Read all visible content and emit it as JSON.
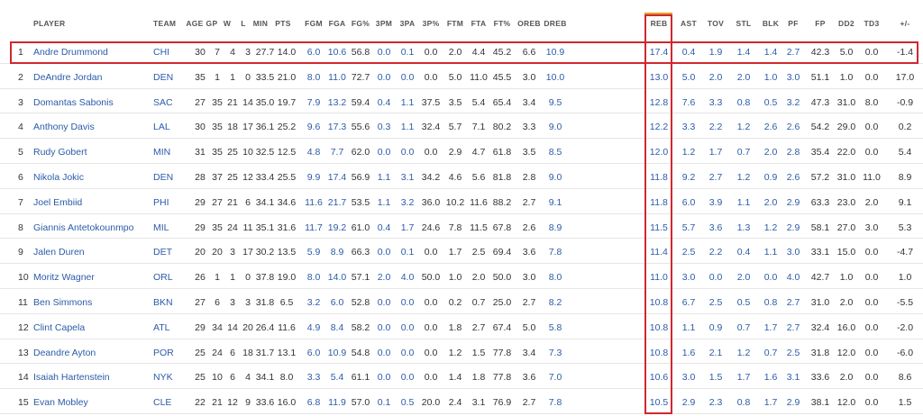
{
  "table": {
    "headers": [
      "PLAYER",
      "TEAM",
      "AGE",
      "GP",
      "W",
      "L",
      "MIN",
      "PTS",
      "FGM",
      "FGA",
      "FG%",
      "3PM",
      "3PA",
      "3P%",
      "FTM",
      "FTA",
      "FT%",
      "OREB",
      "DREB",
      "REB",
      "AST",
      "TOV",
      "STL",
      "BLK",
      "PF",
      "FP",
      "DD2",
      "TD3",
      "+/-"
    ],
    "rows": [
      [
        "1",
        "Andre Drummond",
        "CHI",
        "30",
        "7",
        "4",
        "3",
        "27.7",
        "14.0",
        "6.0",
        "10.6",
        "56.8",
        "0.0",
        "0.1",
        "0.0",
        "2.0",
        "4.4",
        "45.2",
        "6.6",
        "10.9",
        "17.4",
        "0.4",
        "1.9",
        "1.4",
        "1.4",
        "2.7",
        "42.3",
        "5.0",
        "0.0",
        "-1.4"
      ],
      [
        "2",
        "DeAndre Jordan",
        "DEN",
        "35",
        "1",
        "1",
        "0",
        "33.5",
        "21.0",
        "8.0",
        "11.0",
        "72.7",
        "0.0",
        "0.0",
        "0.0",
        "5.0",
        "11.0",
        "45.5",
        "3.0",
        "10.0",
        "13.0",
        "5.0",
        "2.0",
        "2.0",
        "1.0",
        "3.0",
        "51.1",
        "1.0",
        "0.0",
        "17.0"
      ],
      [
        "3",
        "Domantas Sabonis",
        "SAC",
        "27",
        "35",
        "21",
        "14",
        "35.0",
        "19.7",
        "7.9",
        "13.2",
        "59.4",
        "0.4",
        "1.1",
        "37.5",
        "3.5",
        "5.4",
        "65.4",
        "3.4",
        "9.5",
        "12.8",
        "7.6",
        "3.3",
        "0.8",
        "0.5",
        "3.2",
        "47.3",
        "31.0",
        "8.0",
        "-0.9"
      ],
      [
        "4",
        "Anthony Davis",
        "LAL",
        "30",
        "35",
        "18",
        "17",
        "36.1",
        "25.2",
        "9.6",
        "17.3",
        "55.6",
        "0.3",
        "1.1",
        "32.4",
        "5.7",
        "7.1",
        "80.2",
        "3.3",
        "9.0",
        "12.2",
        "3.3",
        "2.2",
        "1.2",
        "2.6",
        "2.6",
        "54.2",
        "29.0",
        "0.0",
        "0.2"
      ],
      [
        "5",
        "Rudy Gobert",
        "MIN",
        "31",
        "35",
        "25",
        "10",
        "32.5",
        "12.5",
        "4.8",
        "7.7",
        "62.0",
        "0.0",
        "0.0",
        "0.0",
        "2.9",
        "4.7",
        "61.8",
        "3.5",
        "8.5",
        "12.0",
        "1.2",
        "1.7",
        "0.7",
        "2.0",
        "2.8",
        "35.4",
        "22.0",
        "0.0",
        "5.4"
      ],
      [
        "6",
        "Nikola Jokic",
        "DEN",
        "28",
        "37",
        "25",
        "12",
        "33.4",
        "25.5",
        "9.9",
        "17.4",
        "56.9",
        "1.1",
        "3.1",
        "34.2",
        "4.6",
        "5.6",
        "81.8",
        "2.8",
        "9.0",
        "11.8",
        "9.2",
        "2.7",
        "1.2",
        "0.9",
        "2.6",
        "57.2",
        "31.0",
        "11.0",
        "8.9"
      ],
      [
        "7",
        "Joel Embiid",
        "PHI",
        "29",
        "27",
        "21",
        "6",
        "34.1",
        "34.6",
        "11.6",
        "21.7",
        "53.5",
        "1.1",
        "3.2",
        "36.0",
        "10.2",
        "11.6",
        "88.2",
        "2.7",
        "9.1",
        "11.8",
        "6.0",
        "3.9",
        "1.1",
        "2.0",
        "2.9",
        "63.3",
        "23.0",
        "2.0",
        "9.1"
      ],
      [
        "8",
        "Giannis Antetokounmpo",
        "MIL",
        "29",
        "35",
        "24",
        "11",
        "35.1",
        "31.6",
        "11.7",
        "19.2",
        "61.0",
        "0.4",
        "1.7",
        "24.6",
        "7.8",
        "11.5",
        "67.8",
        "2.6",
        "8.9",
        "11.5",
        "5.7",
        "3.6",
        "1.3",
        "1.2",
        "2.9",
        "58.1",
        "27.0",
        "3.0",
        "5.3"
      ],
      [
        "9",
        "Jalen Duren",
        "DET",
        "20",
        "20",
        "3",
        "17",
        "30.2",
        "13.5",
        "5.9",
        "8.9",
        "66.3",
        "0.0",
        "0.1",
        "0.0",
        "1.7",
        "2.5",
        "69.4",
        "3.6",
        "7.8",
        "11.4",
        "2.5",
        "2.2",
        "0.4",
        "1.1",
        "3.0",
        "33.1",
        "15.0",
        "0.0",
        "-4.7"
      ],
      [
        "10",
        "Moritz Wagner",
        "ORL",
        "26",
        "1",
        "1",
        "0",
        "37.8",
        "19.0",
        "8.0",
        "14.0",
        "57.1",
        "2.0",
        "4.0",
        "50.0",
        "1.0",
        "2.0",
        "50.0",
        "3.0",
        "8.0",
        "11.0",
        "3.0",
        "0.0",
        "2.0",
        "0.0",
        "4.0",
        "42.7",
        "1.0",
        "0.0",
        "1.0"
      ],
      [
        "11",
        "Ben Simmons",
        "BKN",
        "27",
        "6",
        "3",
        "3",
        "31.8",
        "6.5",
        "3.2",
        "6.0",
        "52.8",
        "0.0",
        "0.0",
        "0.0",
        "0.2",
        "0.7",
        "25.0",
        "2.7",
        "8.2",
        "10.8",
        "6.7",
        "2.5",
        "0.5",
        "0.8",
        "2.7",
        "31.0",
        "2.0",
        "0.0",
        "-5.5"
      ],
      [
        "12",
        "Clint Capela",
        "ATL",
        "29",
        "34",
        "14",
        "20",
        "26.4",
        "11.6",
        "4.9",
        "8.4",
        "58.2",
        "0.0",
        "0.0",
        "0.0",
        "1.8",
        "2.7",
        "67.4",
        "5.0",
        "5.8",
        "10.8",
        "1.1",
        "0.9",
        "0.7",
        "1.7",
        "2.7",
        "32.4",
        "16.0",
        "0.0",
        "-2.0"
      ],
      [
        "13",
        "Deandre Ayton",
        "POR",
        "25",
        "24",
        "6",
        "18",
        "31.7",
        "13.1",
        "6.0",
        "10.9",
        "54.8",
        "0.0",
        "0.0",
        "0.0",
        "1.2",
        "1.5",
        "77.8",
        "3.4",
        "7.3",
        "10.8",
        "1.6",
        "2.1",
        "1.2",
        "0.7",
        "2.5",
        "31.8",
        "12.0",
        "0.0",
        "-6.0"
      ],
      [
        "14",
        "Isaiah Hartenstein",
        "NYK",
        "25",
        "10",
        "6",
        "4",
        "34.1",
        "8.0",
        "3.3",
        "5.4",
        "61.1",
        "0.0",
        "0.0",
        "0.0",
        "1.4",
        "1.8",
        "77.8",
        "3.6",
        "7.0",
        "10.6",
        "3.0",
        "1.5",
        "1.7",
        "1.6",
        "3.1",
        "33.6",
        "2.0",
        "0.0",
        "8.6"
      ],
      [
        "15",
        "Evan Mobley",
        "CLE",
        "22",
        "21",
        "12",
        "9",
        "33.6",
        "16.0",
        "6.8",
        "11.9",
        "57.0",
        "0.1",
        "0.5",
        "20.0",
        "2.4",
        "3.1",
        "76.9",
        "2.7",
        "7.8",
        "10.5",
        "2.9",
        "2.3",
        "0.8",
        "1.7",
        "2.9",
        "38.1",
        "12.0",
        "0.0",
        "1.5"
      ]
    ]
  },
  "colors": {
    "link": "#2b5ba8",
    "highlight_border": "#d0282e",
    "sorted_column_marker": "#e8a020",
    "text": "#333333",
    "header_text": "#555555",
    "row_separator": "#e6e6e6"
  }
}
